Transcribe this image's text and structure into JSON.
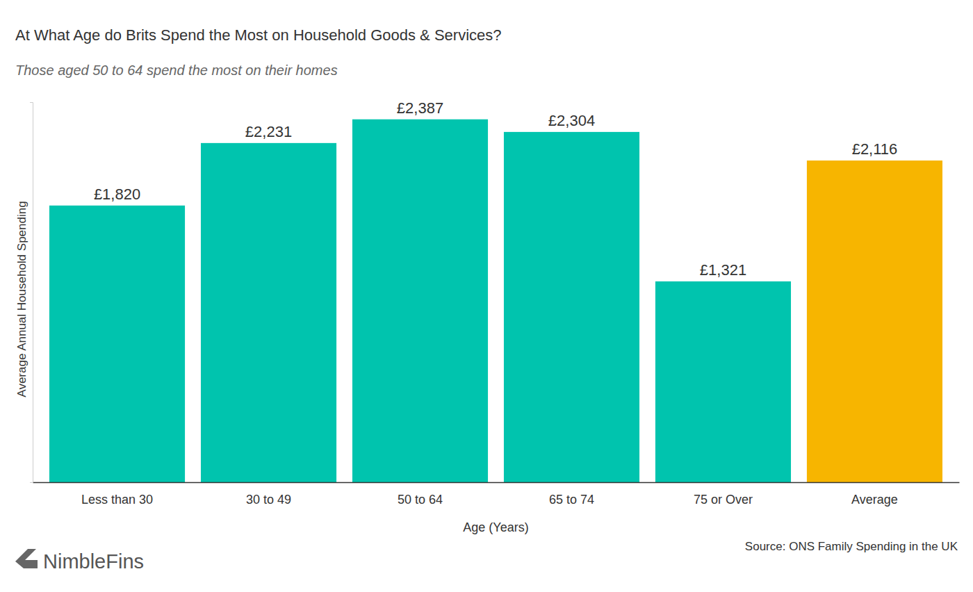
{
  "chart_data": {
    "type": "bar",
    "title": "At What Age do Brits Spend the Most on Household Goods & Services?",
    "subtitle": "Those aged 50 to 64 spend the most on their homes",
    "x_label": "Age (Years)",
    "y_label": "Average Annual Household Spending",
    "categories": [
      "Less than 30",
      "30 to 49",
      "50 to 64",
      "65 to 74",
      "75 or Over",
      "Average"
    ],
    "values": [
      1820,
      2231,
      2387,
      2304,
      1321,
      2116
    ],
    "value_labels": [
      "£1,820",
      "£2,231",
      "£2,387",
      "£2,304",
      "£1,321",
      "£2,116"
    ],
    "colors": [
      "#00c4ae",
      "#00c4ae",
      "#00c4ae",
      "#00c4ae",
      "#00c4ae",
      "#f7b500"
    ],
    "ylim": [
      0,
      2500
    ],
    "yticks": [],
    "grid": false,
    "data_labels": true,
    "tick_labels": "x",
    "annotations": [
      "Source: ONS Family Spending in the UK",
      "NimbleFins"
    ]
  }
}
